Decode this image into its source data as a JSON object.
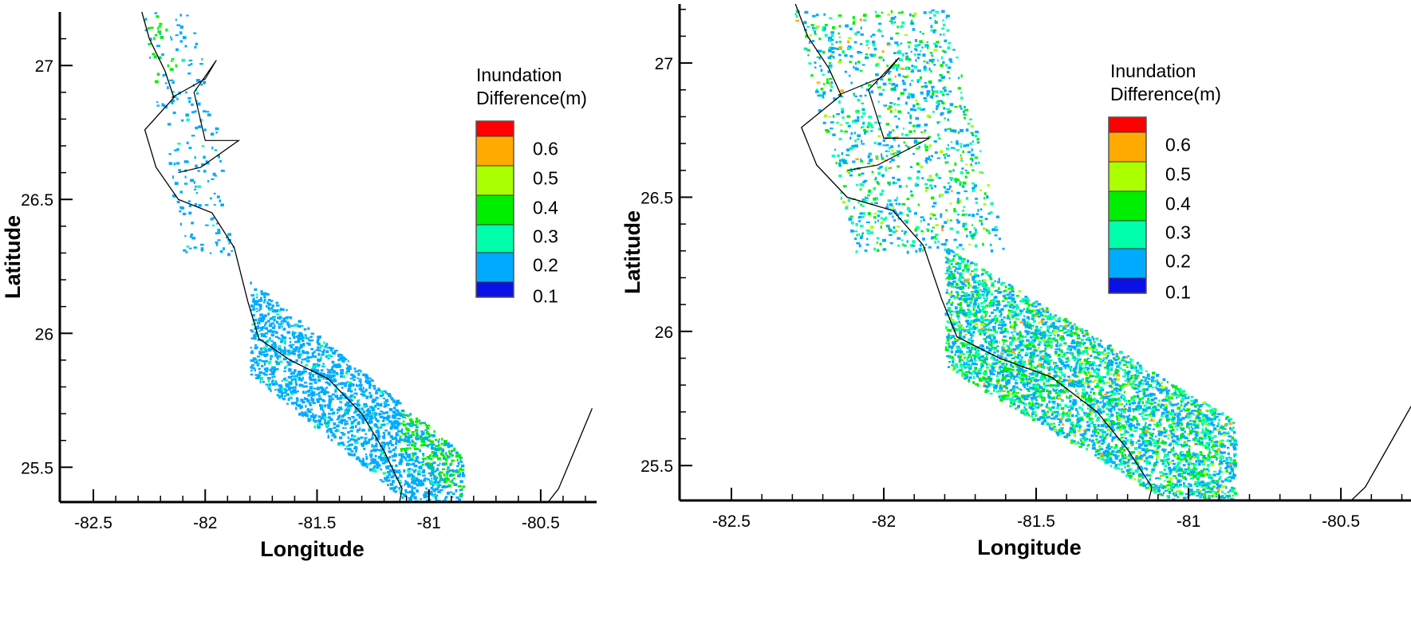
{
  "legend_colors": {
    "0.1": "#0a10e6",
    "0.2": "#00aaff",
    "0.3": "#00ffaa",
    "0.4": "#00ee00",
    "0.5": "#aaff00",
    "0.6": "#ffaa00",
    "top": "#ff0000"
  },
  "chart_data": [
    {
      "type": "map",
      "xlabel": "Longitude",
      "ylabel": "Latitude",
      "xlim": [
        -82.65,
        -80.25
      ],
      "ylim": [
        25.37,
        27.2
      ],
      "xticks": [
        "-82.5",
        "-82",
        "-81.5",
        "-81",
        "-80.5"
      ],
      "yticks": [
        "25.5",
        "26",
        "26.5",
        "27"
      ],
      "legend": {
        "title_line1": "Inundation",
        "title_line2": "Difference(m)",
        "levels": [
          "0.6",
          "0.5",
          "0.4",
          "0.3",
          "0.2",
          "0.1"
        ],
        "placement": "right"
      },
      "inundation_extent": "moderate, mostly 0.2 m with 0.3-0.4 m near -81 lon / 25.6 lat"
    },
    {
      "type": "map",
      "xlabel": "Longitude",
      "ylabel": "Latitude",
      "xlim": [
        -82.67,
        -80.27
      ],
      "ylim": [
        25.37,
        27.22
      ],
      "xticks": [
        "-82.5",
        "-82",
        "-81.5",
        "-81",
        "-80.5"
      ],
      "yticks": [
        "25.5",
        "26",
        "26.5",
        "27"
      ],
      "legend": {
        "title_line1": "Inundation",
        "title_line2": "Difference(m)",
        "levels": [
          "0.6",
          "0.5",
          "0.4",
          "0.3",
          "0.2",
          "0.1"
        ],
        "placement": "right"
      },
      "inundation_extent": "wider, 0.2-0.5 m over coastal band -81.8 to -80.85 lon"
    }
  ]
}
